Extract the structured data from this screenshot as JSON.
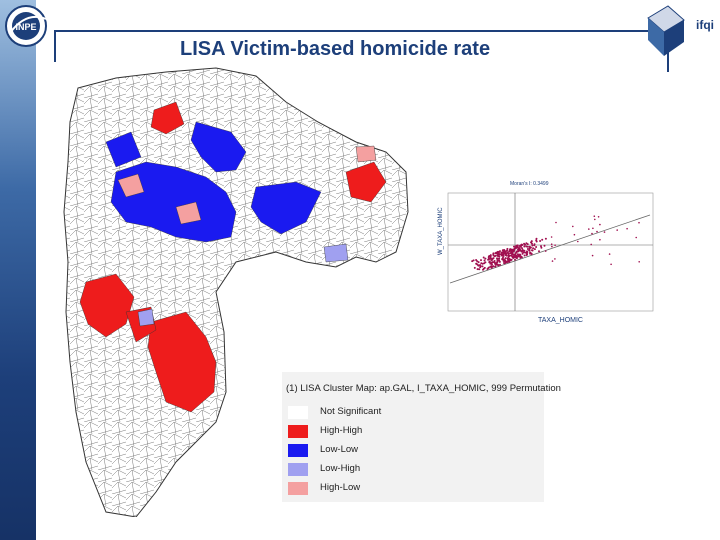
{
  "slide": {
    "title": "LISA Victim-based homicide rate",
    "brand_text": "ifqi",
    "logo_text": "INPE"
  },
  "scatter": {
    "title": "Moran's I: 0.3499",
    "ylabel": "W_TAXA_HOMIC",
    "xlabel": "TAXA_HOMIC"
  },
  "legend": {
    "title": "(1) LISA Cluster Map: ap.GAL, I_TAXA_HOMIC, 999 Permutation",
    "items": [
      {
        "label": "Not Significant",
        "color": "#ffffff"
      },
      {
        "label": "High-High",
        "color": "#ee1c1c"
      },
      {
        "label": "Low-Low",
        "color": "#1a1af0"
      },
      {
        "label": "Low-High",
        "color": "#a0a0f0"
      },
      {
        "label": "High-Low",
        "color": "#f4a0a0"
      }
    ]
  },
  "colors": {
    "accent": "#1d3f7a",
    "high_high": "#ee1c1c",
    "low_low": "#1a1af0",
    "low_high": "#a0a0f0",
    "high_low": "#f4a0a0",
    "scatter_points": "#a01050"
  }
}
